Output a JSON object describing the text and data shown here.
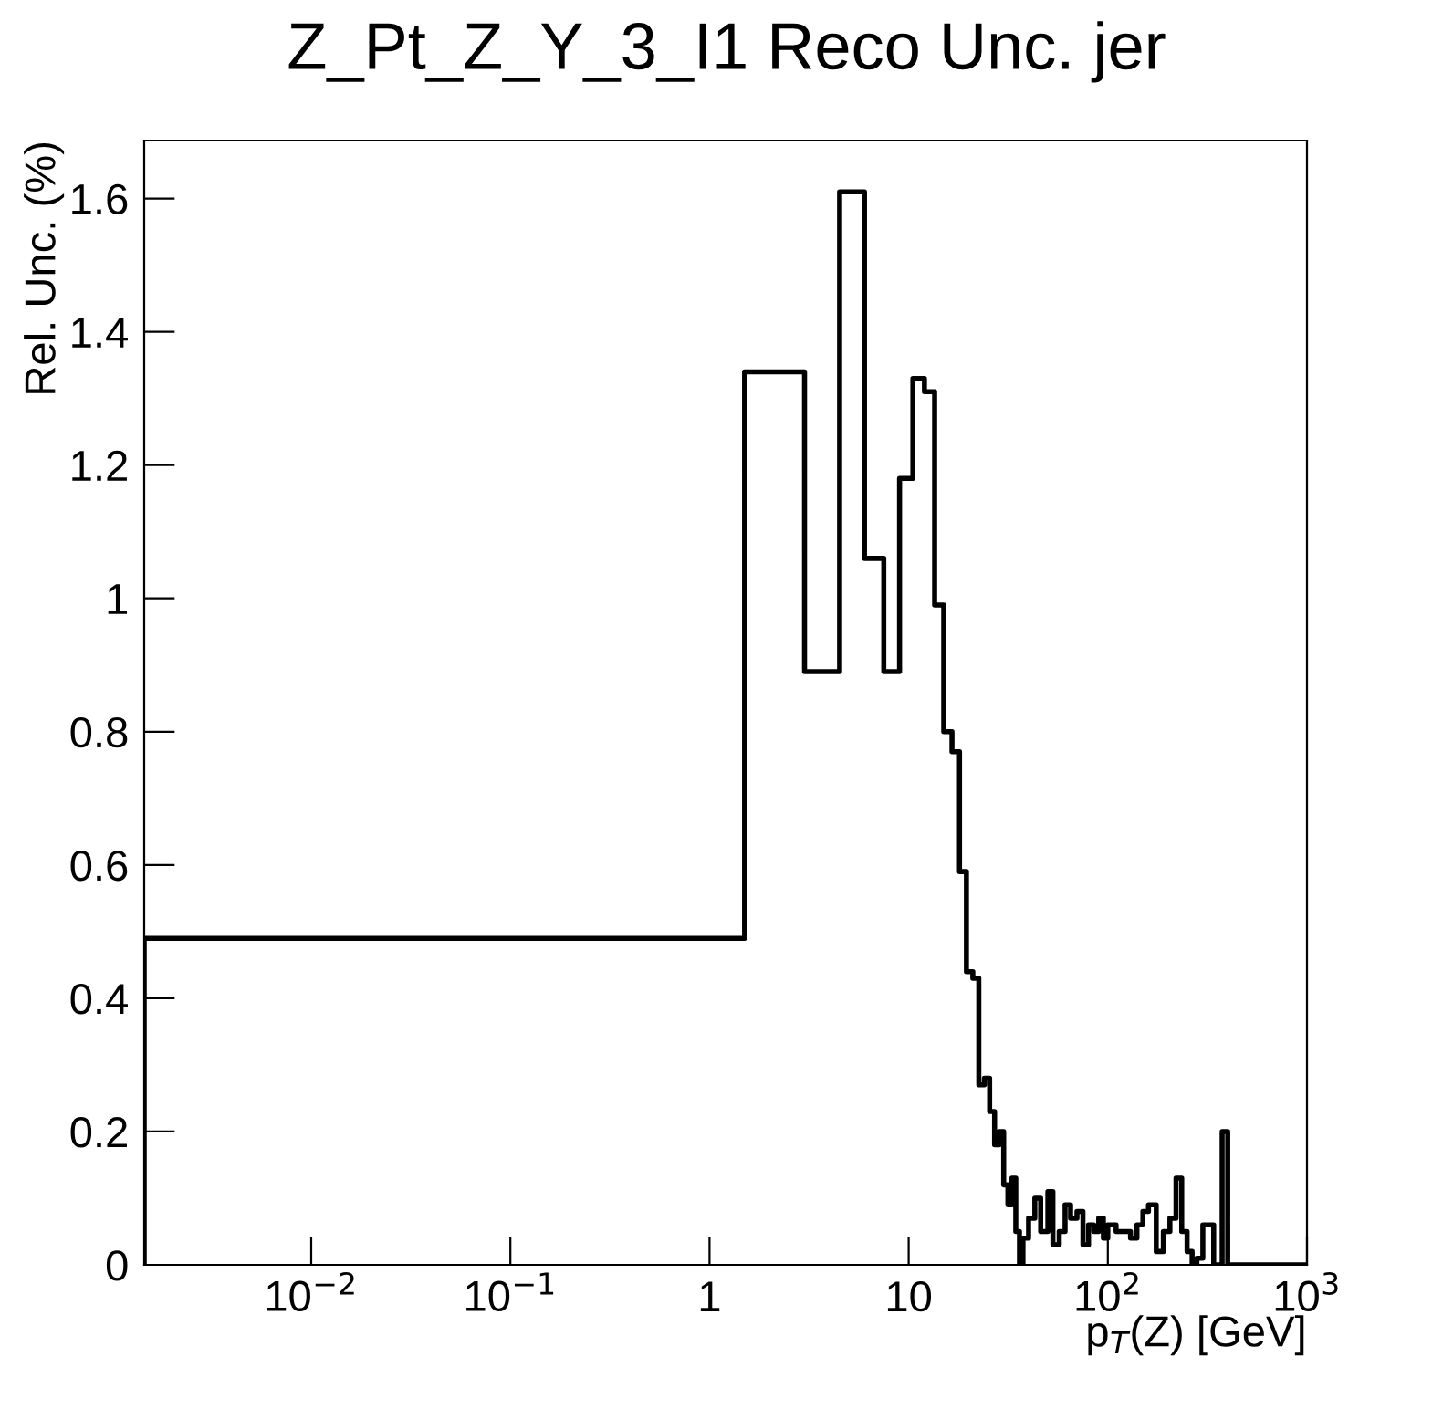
{
  "chart_data": {
    "type": "histogram",
    "title": "Z_Pt_Z_Y_3_I1 Reco Unc. jer",
    "xlabel": "p$_{T}$(Z) [GeV]",
    "ylabel": "Rel. Unc. (%)",
    "bins": [
      0.00145,
      1.5,
      3,
      4.5,
      6,
      7.5,
      9,
      10.5,
      12,
      13.5,
      15,
      16.5,
      18,
      19.5,
      21,
      22.5,
      24,
      25.5,
      27,
      28.5,
      30,
      31.5,
      33,
      34.5,
      36,
      37.5,
      40,
      43,
      46,
      50,
      53,
      57,
      61,
      65,
      70,
      75,
      80,
      85,
      90,
      95,
      100,
      110,
      120,
      130,
      140,
      150,
      160,
      175,
      190,
      205,
      220,
      235,
      250,
      265,
      280,
      300,
      320,
      340,
      360,
      375,
      400,
      420,
      1000
    ],
    "values": [
      0.49,
      1.34,
      0.89,
      1.61,
      1.06,
      0.89,
      1.18,
      1.33,
      1.31,
      0.99,
      0.8,
      0.77,
      0.59,
      0.44,
      0.43,
      0.27,
      0.28,
      0.23,
      0.18,
      0.2,
      0.12,
      0.09,
      0.13,
      0.05,
      0.0,
      0.04,
      0.07,
      0.1,
      0.05,
      0.11,
      0.03,
      0.05,
      0.09,
      0.07,
      0.08,
      0.03,
      0.06,
      0.05,
      0.07,
      0.04,
      0.06,
      0.05,
      0.05,
      0.04,
      0.06,
      0.08,
      0.09,
      0.02,
      0.05,
      0.07,
      0.13,
      0.05,
      0.02,
      0.0,
      0.01,
      0.06,
      0.06,
      0.0,
      0.0,
      0.2,
      0.0,
      0.0
    ],
    "color": "#000000",
    "log": "x",
    "xlim": [
      0.00145,
      1000
    ],
    "xticks": [
      {
        "value": 0.01,
        "label": "10$^{−2}$"
      },
      {
        "value": 0.1,
        "label": "10$^{−1}$"
      },
      1,
      10,
      {
        "value": 100,
        "label": "10$^{2}$"
      },
      {
        "value": 1000,
        "label": "10$^{3}$"
      }
    ],
    "ylim": [
      0,
      1.687
    ],
    "yticks": [
      0,
      0.2,
      0.4,
      0.6,
      0.8,
      1,
      1.2,
      1.4,
      1.6
    ],
    "grid": false,
    "legend": false
  }
}
